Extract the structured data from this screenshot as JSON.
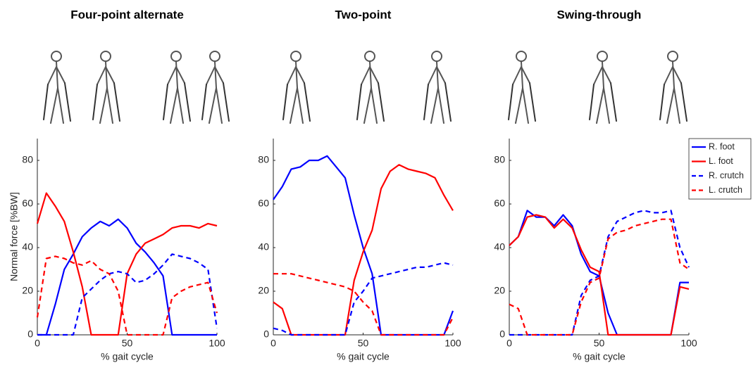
{
  "chart_data": [
    {
      "type": "line",
      "title": "Four-point alternate",
      "x_label": "% gait cycle",
      "y_label": "Normal force [%BW]",
      "x": [
        0,
        5,
        10,
        15,
        20,
        25,
        30,
        35,
        40,
        45,
        50,
        55,
        60,
        65,
        70,
        75,
        80,
        85,
        90,
        95,
        100
      ],
      "xlim": [
        0,
        100
      ],
      "ylim": [
        0,
        90
      ],
      "xticks": [
        0,
        50,
        100
      ],
      "yticks": [
        0,
        20,
        40,
        60,
        80
      ],
      "series": [
        {
          "name": "R. foot",
          "color": "#0000ff",
          "style": "solid",
          "values": [
            0,
            0,
            14,
            30,
            37,
            45,
            49,
            52,
            50,
            53,
            49,
            42,
            38,
            33,
            27,
            0,
            0,
            0,
            0,
            0,
            0
          ]
        },
        {
          "name": "L. foot",
          "color": "#ff0000",
          "style": "solid",
          "values": [
            51,
            65,
            59,
            52,
            38,
            22,
            0,
            0,
            0,
            0,
            28,
            37,
            42,
            44,
            46,
            49,
            50,
            50,
            49,
            51,
            50
          ]
        },
        {
          "name": "R. crutch",
          "color": "#0000ff",
          "style": "dashed",
          "values": [
            0,
            0,
            0,
            0,
            0,
            17,
            21,
            25,
            28,
            29,
            28,
            24,
            25,
            28,
            32,
            37,
            36,
            35,
            33,
            30,
            3
          ]
        },
        {
          "name": "L. crutch",
          "color": "#ff0000",
          "style": "dashed",
          "values": [
            8,
            35,
            36,
            35,
            33,
            32,
            34,
            30,
            28,
            20,
            0,
            0,
            0,
            0,
            0,
            17,
            20,
            22,
            23,
            24,
            10
          ]
        }
      ]
    },
    {
      "type": "line",
      "title": "Two-point",
      "x_label": "% gait cycle",
      "x": [
        0,
        5,
        10,
        15,
        20,
        25,
        30,
        35,
        40,
        45,
        50,
        55,
        60,
        65,
        70,
        75,
        80,
        85,
        90,
        95,
        100
      ],
      "xlim": [
        0,
        100
      ],
      "ylim": [
        0,
        90
      ],
      "xticks": [
        0,
        50,
        100
      ],
      "yticks": [
        0,
        20,
        40,
        60,
        80
      ],
      "series": [
        {
          "name": "R. foot",
          "color": "#0000ff",
          "style": "solid",
          "values": [
            62,
            68,
            76,
            77,
            80,
            80,
            82,
            77,
            72,
            55,
            40,
            28,
            0,
            0,
            0,
            0,
            0,
            0,
            0,
            0,
            11
          ]
        },
        {
          "name": "L. foot",
          "color": "#ff0000",
          "style": "solid",
          "values": [
            15,
            12,
            0,
            0,
            0,
            0,
            0,
            0,
            0,
            25,
            38,
            48,
            67,
            75,
            78,
            76,
            75,
            74,
            72,
            64,
            57
          ]
        },
        {
          "name": "R. crutch",
          "color": "#0000ff",
          "style": "dashed",
          "values": [
            3,
            2,
            0,
            0,
            0,
            0,
            0,
            0,
            0,
            15,
            20,
            26,
            27,
            28,
            29,
            30,
            31,
            31,
            32,
            33,
            32
          ]
        },
        {
          "name": "L. crutch",
          "color": "#ff0000",
          "style": "dashed",
          "values": [
            28,
            28,
            28,
            27,
            26,
            25,
            24,
            23,
            22,
            20,
            15,
            11,
            0,
            0,
            0,
            0,
            0,
            0,
            0,
            0,
            8
          ]
        }
      ]
    },
    {
      "type": "line",
      "title": "Swing-through",
      "x_label": "% gait cycle",
      "legend": "right",
      "x": [
        0,
        5,
        10,
        15,
        20,
        25,
        30,
        35,
        40,
        45,
        50,
        55,
        60,
        65,
        70,
        75,
        80,
        85,
        90,
        95,
        100
      ],
      "xlim": [
        0,
        100
      ],
      "ylim": [
        0,
        90
      ],
      "xticks": [
        0,
        50,
        100
      ],
      "yticks": [
        0,
        20,
        40,
        60,
        80
      ],
      "series": [
        {
          "name": "R. foot",
          "color": "#0000ff",
          "style": "solid",
          "values": [
            41,
            45,
            57,
            54,
            54,
            50,
            55,
            50,
            37,
            29,
            27,
            10,
            0,
            0,
            0,
            0,
            0,
            0,
            0,
            24,
            24
          ]
        },
        {
          "name": "L. foot",
          "color": "#ff0000",
          "style": "solid",
          "values": [
            41,
            45,
            54,
            55,
            54,
            49,
            53,
            49,
            39,
            31,
            29,
            0,
            0,
            0,
            0,
            0,
            0,
            0,
            0,
            22,
            21
          ]
        },
        {
          "name": "R. crutch",
          "color": "#0000ff",
          "style": "dashed",
          "values": [
            0,
            0,
            0,
            0,
            0,
            0,
            0,
            0,
            18,
            25,
            27,
            45,
            52,
            54,
            56,
            57,
            56,
            56,
            57,
            40,
            31
          ]
        },
        {
          "name": "L. crutch",
          "color": "#ff0000",
          "style": "dashed",
          "values": [
            14,
            12,
            0,
            0,
            0,
            0,
            0,
            0,
            15,
            24,
            26,
            44,
            47,
            48,
            50,
            51,
            52,
            53,
            53,
            33,
            30
          ]
        }
      ]
    }
  ]
}
